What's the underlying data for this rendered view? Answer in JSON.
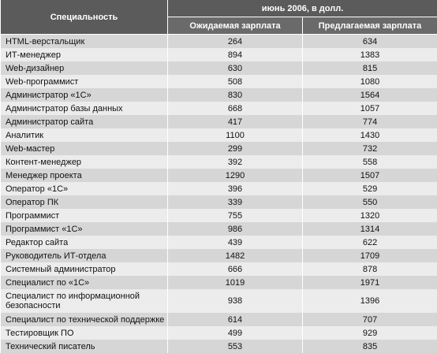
{
  "table": {
    "header": {
      "specialty": "Специальность",
      "period": "июнь 2006, в долл.",
      "expected": "Ожидаемая зарплата",
      "offered": "Предлагаемая зарплата"
    },
    "rows": [
      [
        "HTML-верстальщик",
        264,
        634
      ],
      [
        "ИТ-менеджер",
        894,
        1383
      ],
      [
        "Web-дизайнер",
        630,
        815
      ],
      [
        "Web-программист",
        508,
        1080
      ],
      [
        "Администратор «1С»",
        830,
        1564
      ],
      [
        "Администратор базы данных",
        668,
        1057
      ],
      [
        "Администратор сайта",
        417,
        774
      ],
      [
        "Аналитик",
        1100,
        1430
      ],
      [
        "Web-мастер",
        299,
        732
      ],
      [
        "Контент-менеджер",
        392,
        558
      ],
      [
        "Менеджер проекта",
        1290,
        1507
      ],
      [
        "Оператор «1С»",
        396,
        529
      ],
      [
        "Оператор ПК",
        339,
        550
      ],
      [
        "Программист",
        755,
        1320
      ],
      [
        "Программист «1С»",
        986,
        1314
      ],
      [
        "Редактор сайта",
        439,
        622
      ],
      [
        "Руководитель ИТ-отдела",
        1482,
        1709
      ],
      [
        "Системный администратор",
        666,
        878
      ],
      [
        "Специалист по «1С»",
        1019,
        1971
      ],
      [
        "Специалист по информационной безопасности",
        938,
        1396
      ],
      [
        "Специалист по технической поддержке",
        614,
        707
      ],
      [
        "Тестировщик ПО",
        499,
        929
      ],
      [
        "Технический писатель",
        553,
        835
      ]
    ]
  }
}
